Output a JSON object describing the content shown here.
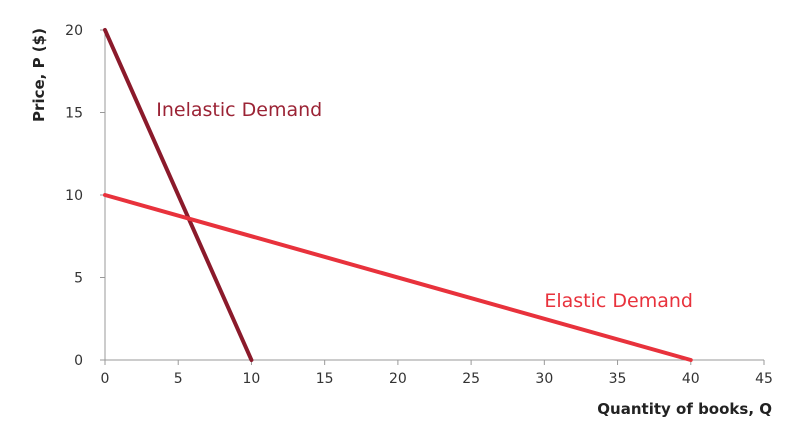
{
  "chart_data": {
    "type": "line",
    "title": "",
    "xlabel": "Quantity of books, Q",
    "ylabel": "Price, P ($)",
    "xlim": [
      0,
      45
    ],
    "ylim": [
      0,
      20
    ],
    "x_ticks": [
      0,
      5,
      10,
      15,
      20,
      25,
      30,
      35,
      40,
      45
    ],
    "y_ticks": [
      0,
      5,
      10,
      15,
      20
    ],
    "grid": false,
    "legend": "none",
    "series": [
      {
        "name": "Inelastic Demand",
        "color": "#8b1a2b",
        "label_color": "#9b2335",
        "x": [
          0,
          10
        ],
        "y": [
          20,
          0
        ],
        "label_anchor": [
          3.5,
          14.8
        ]
      },
      {
        "name": "Elastic Demand",
        "color": "#e8323c",
        "label_color": "#e8323c",
        "x": [
          0,
          40
        ],
        "y": [
          10,
          0
        ],
        "label_anchor": [
          30,
          3.2
        ]
      }
    ]
  }
}
